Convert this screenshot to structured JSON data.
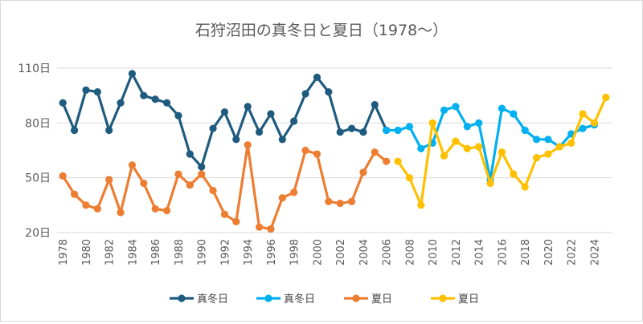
{
  "chart_data": {
    "type": "line",
    "title": "石狩沼田の真冬日と夏日（1978～）",
    "xlabel": "",
    "ylabel": "",
    "xlim": [
      1978,
      2025
    ],
    "ylim": [
      20,
      110
    ],
    "y_ticks": [
      20,
      50,
      80,
      110
    ],
    "y_tick_labels": [
      "20日",
      "50日",
      "80日",
      "110日"
    ],
    "x_tick_labels": [
      "1978",
      "1980",
      "1982",
      "1984",
      "1986",
      "1988",
      "1990",
      "1992",
      "1994",
      "1996",
      "1998",
      "2000",
      "2002",
      "2004",
      "2006",
      "2008",
      "2010",
      "2012",
      "2014",
      "2016",
      "2018",
      "2020",
      "2022",
      "2024"
    ],
    "grid": "horizontal",
    "legend_position": "bottom",
    "series": [
      {
        "name": "真冬日",
        "color": "#1f5b7f",
        "points": [
          [
            1978,
            91
          ],
          [
            1979,
            76
          ],
          [
            1980,
            98
          ],
          [
            1981,
            97
          ],
          [
            1982,
            76
          ],
          [
            1983,
            91
          ],
          [
            1984,
            107
          ],
          [
            1985,
            95
          ],
          [
            1986,
            93
          ],
          [
            1987,
            91
          ],
          [
            1988,
            84
          ],
          [
            1989,
            63
          ],
          [
            1990,
            56
          ],
          [
            1991,
            77
          ],
          [
            1992,
            86
          ],
          [
            1993,
            71
          ],
          [
            1994,
            89
          ],
          [
            1995,
            75
          ],
          [
            1996,
            85
          ],
          [
            1997,
            71
          ],
          [
            1998,
            81
          ],
          [
            1999,
            96
          ],
          [
            2000,
            105
          ],
          [
            2001,
            97
          ],
          [
            2002,
            75
          ],
          [
            2003,
            77
          ],
          [
            2004,
            75
          ],
          [
            2005,
            90
          ],
          [
            2006,
            76
          ]
        ]
      },
      {
        "name": "真冬日",
        "color": "#00b0f0",
        "points": [
          [
            2006,
            76
          ],
          [
            2007,
            76
          ],
          [
            2008,
            78
          ],
          [
            2009,
            66
          ],
          [
            2010,
            69
          ],
          [
            2011,
            87
          ],
          [
            2012,
            89
          ],
          [
            2013,
            78
          ],
          [
            2014,
            80
          ],
          [
            2015,
            49
          ],
          [
            2016,
            88
          ],
          [
            2017,
            85
          ],
          [
            2018,
            76
          ],
          [
            2019,
            71
          ],
          [
            2020,
            71
          ],
          [
            2021,
            67
          ],
          [
            2022,
            74
          ],
          [
            2023,
            77
          ],
          [
            2024,
            79
          ]
        ]
      },
      {
        "name": "夏日",
        "color": "#ed7d31",
        "points": [
          [
            1978,
            51
          ],
          [
            1979,
            41
          ],
          [
            1980,
            35
          ],
          [
            1981,
            33
          ],
          [
            1982,
            49
          ],
          [
            1983,
            31
          ],
          [
            1984,
            57
          ],
          [
            1985,
            47
          ],
          [
            1986,
            33
          ],
          [
            1987,
            32
          ],
          [
            1988,
            52
          ],
          [
            1989,
            46
          ],
          [
            1990,
            52
          ],
          [
            1991,
            43
          ],
          [
            1992,
            30
          ],
          [
            1993,
            26
          ],
          [
            1994,
            68
          ],
          [
            1995,
            23
          ],
          [
            1996,
            22
          ],
          [
            1997,
            39
          ],
          [
            1998,
            42
          ],
          [
            1999,
            65
          ],
          [
            2000,
            63
          ],
          [
            2001,
            37
          ],
          [
            2002,
            36
          ],
          [
            2003,
            37
          ],
          [
            2004,
            53
          ],
          [
            2005,
            64
          ],
          [
            2006,
            59
          ]
        ]
      },
      {
        "name": "夏日",
        "color": "#ffc000",
        "points": [
          [
            2007,
            59
          ],
          [
            2008,
            50
          ],
          [
            2009,
            35
          ],
          [
            2010,
            80
          ],
          [
            2011,
            62
          ],
          [
            2012,
            70
          ],
          [
            2013,
            66
          ],
          [
            2014,
            67
          ],
          [
            2015,
            47
          ],
          [
            2016,
            64
          ],
          [
            2017,
            52
          ],
          [
            2018,
            45
          ],
          [
            2019,
            61
          ],
          [
            2020,
            63
          ],
          [
            2021,
            67
          ],
          [
            2022,
            69
          ],
          [
            2023,
            85
          ],
          [
            2024,
            80
          ],
          [
            2025,
            94
          ]
        ]
      }
    ]
  }
}
